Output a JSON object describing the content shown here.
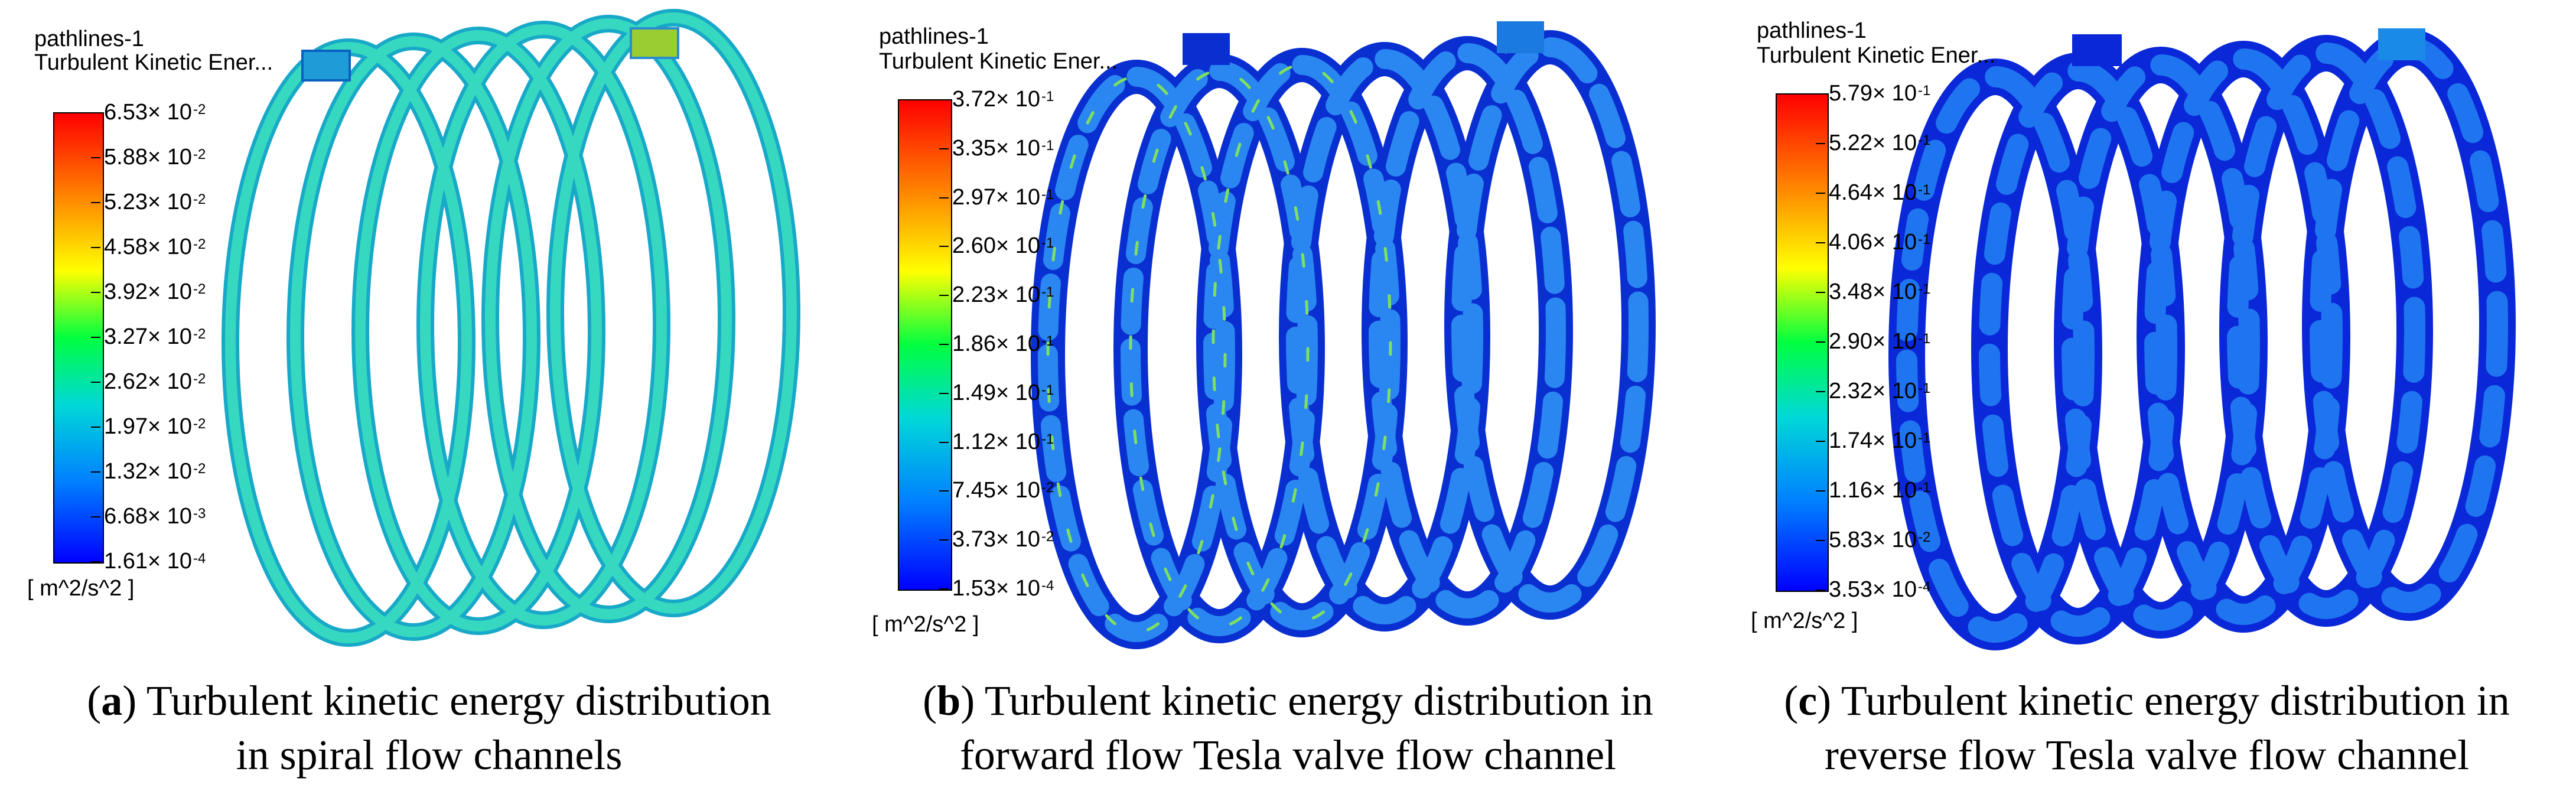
{
  "panels": [
    {
      "id": "a",
      "legend_title_1": "pathlines-1",
      "legend_title_2": "Turbulent Kinetic Ener...",
      "ticks": [
        {
          "mant": "6.53× 10",
          "exp": "-2"
        },
        {
          "mant": "5.88× 10",
          "exp": "-2"
        },
        {
          "mant": "5.23× 10",
          "exp": "-2"
        },
        {
          "mant": "4.58× 10",
          "exp": "-2"
        },
        {
          "mant": "3.92× 10",
          "exp": "-2"
        },
        {
          "mant": "3.27× 10",
          "exp": "-2"
        },
        {
          "mant": "2.62× 10",
          "exp": "-2"
        },
        {
          "mant": "1.97× 10",
          "exp": "-2"
        },
        {
          "mant": "1.32× 10",
          "exp": "-2"
        },
        {
          "mant": "6.68× 10",
          "exp": "-3"
        },
        {
          "mant": "1.61× 10",
          "exp": "-4"
        }
      ],
      "units": "[ m^2/s^2 ]",
      "caption_letter": "a",
      "caption_text_1": ") Turbulent kinetic energy distribution",
      "caption_text_2": "in spiral flow channels",
      "colors": {
        "pipe": "#2fd0c8",
        "pipe_edge": "#18a8c8"
      }
    },
    {
      "id": "b",
      "legend_title_1": "pathlines-1",
      "legend_title_2": "Turbulent Kinetic Ener...",
      "ticks": [
        {
          "mant": "3.72× 10",
          "exp": "-1"
        },
        {
          "mant": "3.35× 10",
          "exp": "-1"
        },
        {
          "mant": "2.97× 10",
          "exp": "-1"
        },
        {
          "mant": "2.60× 10",
          "exp": "-1"
        },
        {
          "mant": "2.23× 10",
          "exp": "-1"
        },
        {
          "mant": "1.86× 10",
          "exp": "-1"
        },
        {
          "mant": "1.49× 10",
          "exp": "-1"
        },
        {
          "mant": "1.12× 10",
          "exp": "-1"
        },
        {
          "mant": "7.45× 10",
          "exp": "-2"
        },
        {
          "mant": "3.73× 10",
          "exp": "-2"
        },
        {
          "mant": "1.53× 10",
          "exp": "-4"
        }
      ],
      "units": "[ m^2/s^2 ]",
      "caption_letter": "b",
      "caption_text_1": ") Turbulent kinetic energy distribution in",
      "caption_text_2": "forward flow Tesla valve flow channel",
      "colors": {
        "pipe": "#1a64e0",
        "pipe_edge": "#0a2fd0"
      }
    },
    {
      "id": "c",
      "legend_title_1": "pathlines-1",
      "legend_title_2": "Turbulent Kinetic Ener...",
      "ticks": [
        {
          "mant": "5.79× 10",
          "exp": "-1"
        },
        {
          "mant": "5.22× 10",
          "exp": "-1"
        },
        {
          "mant": "4.64× 10",
          "exp": "-1"
        },
        {
          "mant": "4.06× 10",
          "exp": "-1"
        },
        {
          "mant": "3.48× 10",
          "exp": "-1"
        },
        {
          "mant": "2.90× 10",
          "exp": "-1"
        },
        {
          "mant": "2.32× 10",
          "exp": "-1"
        },
        {
          "mant": "1.74× 10",
          "exp": "-1"
        },
        {
          "mant": "1.16× 10",
          "exp": "-1"
        },
        {
          "mant": "5.83× 10",
          "exp": "-2"
        },
        {
          "mant": "3.53× 10",
          "exp": "-4"
        }
      ],
      "units": "[ m^2/s^2 ]",
      "caption_letter": "c",
      "caption_text_1": ") Turbulent kinetic energy distribution in",
      "caption_text_2": "reverse flow Tesla valve flow channel",
      "colors": {
        "pipe": "#1456e8",
        "pipe_edge": "#0a28d8"
      }
    }
  ]
}
